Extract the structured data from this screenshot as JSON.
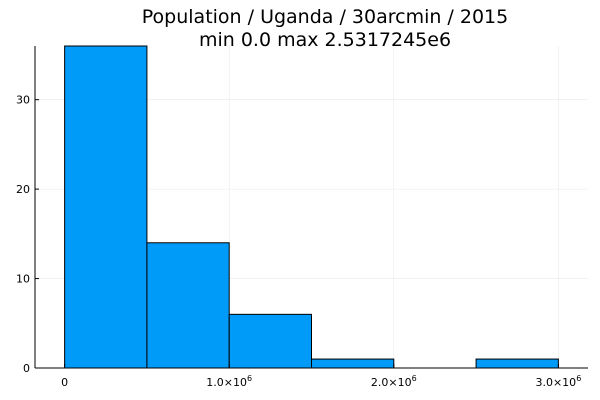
{
  "chart_data": {
    "type": "bar",
    "title_lines": [
      "Population / Uganda / 30arcmin / 2015",
      "min 0.0  max 2.5317245e6"
    ],
    "xlabel": "",
    "ylabel": "",
    "bins": [
      {
        "x0": 0,
        "x1": 500000,
        "count": 36
      },
      {
        "x0": 500000,
        "x1": 1000000,
        "count": 14
      },
      {
        "x0": 1000000,
        "x1": 1500000,
        "count": 6
      },
      {
        "x0": 1500000,
        "x1": 2000000,
        "count": 1
      },
      {
        "x0": 2000000,
        "x1": 2500000,
        "count": 0
      },
      {
        "x0": 2500000,
        "x1": 3000000,
        "count": 1
      }
    ],
    "xlim": [
      -180000,
      3180000
    ],
    "ylim": [
      0,
      36
    ],
    "x_ticks": [
      {
        "value": 0,
        "mantissa": "0",
        "exponent": ""
      },
      {
        "value": 1000000,
        "mantissa": "1.0×10",
        "exponent": "6"
      },
      {
        "value": 2000000,
        "mantissa": "2.0×10",
        "exponent": "6"
      },
      {
        "value": 3000000,
        "mantissa": "3.0×10",
        "exponent": "6"
      }
    ],
    "y_ticks": [
      0,
      10,
      20,
      30
    ],
    "grid": true,
    "legend": "none",
    "bar_color": "#009af9",
    "bar_edge_color": "#000000"
  }
}
